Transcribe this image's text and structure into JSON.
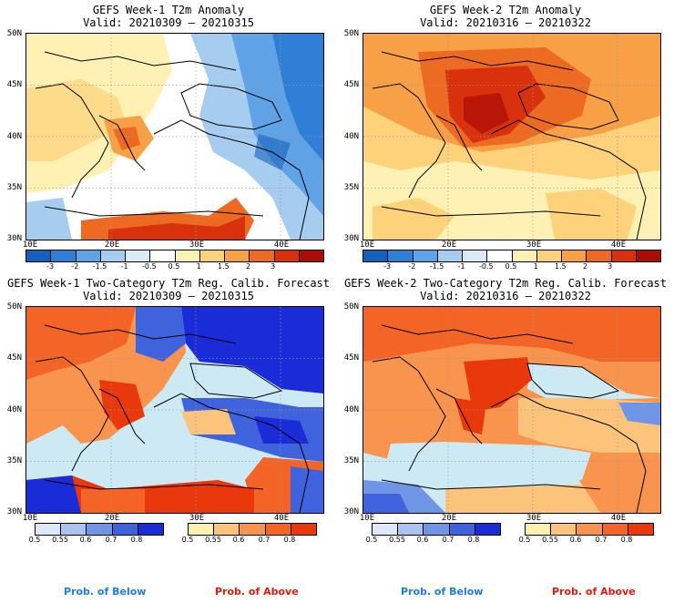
{
  "panels": [
    {
      "title": "GEFS Week-1 T2m Anomaly",
      "valid": "Valid: 20210309 – 20210315",
      "type": "anomaly"
    },
    {
      "title": "GEFS Week-2 T2m Anomaly",
      "valid": "Valid: 20210316 – 20210322",
      "type": "anomaly"
    },
    {
      "title": "GEFS Week-1 Two-Category T2m Reg. Calib. Forecast",
      "valid": "Valid: 20210309 – 20210315",
      "type": "prob"
    },
    {
      "title": "GEFS Week-2 Two-Category T2m Reg. Calib. Forecast",
      "valid": "Valid: 20210316 – 20210322",
      "type": "prob"
    }
  ],
  "axes": {
    "lat_labels": [
      "50N",
      "45N",
      "40N",
      "35N",
      "30N"
    ],
    "lon_labels": [
      "10E",
      "20E",
      "30E",
      "40E"
    ]
  },
  "anomaly_colorbar": {
    "labels": [
      "-3",
      "-2",
      "-1.5",
      "-1",
      "-0.5",
      "0.5",
      "1",
      "1.5",
      "2",
      "3"
    ],
    "colors": [
      "#1560bd",
      "#2f7fd7",
      "#5fa2e6",
      "#a6ccf0",
      "#dceaf8",
      "#ffffff",
      "#fff1b3",
      "#fdd27a",
      "#f8a046",
      "#ec6a21",
      "#d9300d",
      "#a90d05"
    ]
  },
  "prob_colorbars": {
    "below": {
      "labels": [
        "0.5",
        "0.55",
        "0.6",
        "0.7",
        "0.8"
      ],
      "colors": [
        "#dde8f8",
        "#a9c4ef",
        "#6f95e6",
        "#3e63dc",
        "#1a2bd8"
      ]
    },
    "above": {
      "labels": [
        "0.5",
        "0.55",
        "0.6",
        "0.7",
        "0.8"
      ],
      "colors": [
        "#fff0b0",
        "#fcc47a",
        "#f8944e",
        "#f36426",
        "#e8380c"
      ]
    }
  },
  "legend": {
    "below_label": "Prob. of Below",
    "above_label": "Prob. of Above",
    "below_color": "#1e7be0",
    "above_color": "#e11a0c"
  },
  "colors": {
    "sea_prob": "#cde9f3"
  }
}
